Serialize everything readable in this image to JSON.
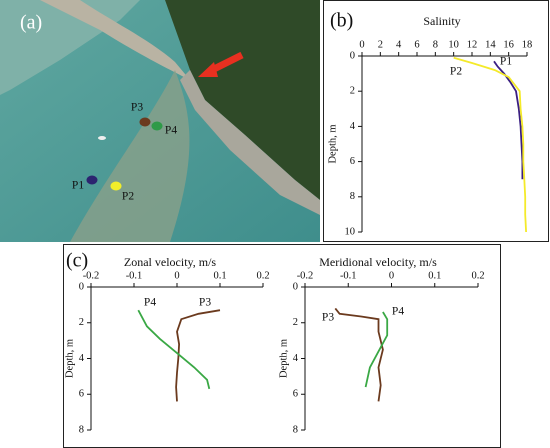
{
  "panels": [
    "(a)",
    "(b)",
    "(c)"
  ],
  "photo": {
    "points": [
      {
        "label": "P1",
        "color": "#2c2470"
      },
      {
        "label": "P2",
        "color": "#f2ee2a"
      },
      {
        "label": "P3",
        "color": "#6b3a1e"
      },
      {
        "label": "P4",
        "color": "#2e9a48"
      }
    ]
  },
  "chart_data": [
    {
      "type": "line",
      "title": "Salinity",
      "ylabel": "Depth, m",
      "xaxis_position": "top",
      "y_inverted": true,
      "xlim": [
        0,
        18
      ],
      "xticks": [
        0,
        2,
        4,
        6,
        8,
        10,
        12,
        14,
        16,
        18
      ],
      "ylim": [
        0,
        10
      ],
      "yticks": [
        0,
        2,
        4,
        6,
        8,
        10
      ],
      "series": [
        {
          "name": "P1",
          "color": "#3b1f82",
          "depth": [
            0.3,
            0.6,
            1,
            1.5,
            2,
            3,
            4,
            5,
            6,
            7
          ],
          "values": [
            14.4,
            14.8,
            15.5,
            16.2,
            16.8,
            17.1,
            17.3,
            17.4,
            17.5,
            17.5
          ]
        },
        {
          "name": "P2",
          "color": "#f4ea2a",
          "depth": [
            0.1,
            0.4,
            0.8,
            1.2,
            2,
            3,
            4,
            5,
            6,
            7,
            8,
            9,
            10
          ],
          "values": [
            10,
            12,
            14.5,
            16,
            17.2,
            17.3,
            17.5,
            17.6,
            17.6,
            17.7,
            17.8,
            17.8,
            17.9
          ]
        }
      ]
    },
    {
      "type": "line",
      "title": "Zonal velocity, m/s",
      "ylabel": "Depth, m",
      "xaxis_position": "top",
      "y_inverted": true,
      "xlim": [
        -0.2,
        0.2
      ],
      "xticks": [
        -0.2,
        -0.1,
        0,
        0.1,
        0.2
      ],
      "ylim": [
        0,
        8
      ],
      "yticks": [
        0,
        2,
        4,
        6,
        8
      ],
      "series": [
        {
          "name": "P3",
          "color": "#6b3a1e",
          "depth": [
            1.3,
            1.5,
            1.8,
            2.5,
            3.2,
            4,
            4.8,
            5.6,
            6.4
          ],
          "values": [
            0.1,
            0.05,
            0.01,
            0,
            0.005,
            0.003,
            0,
            -0.002,
            0
          ]
        },
        {
          "name": "P4",
          "color": "#3aa845",
          "depth": [
            1.3,
            2.2,
            2.9,
            3.7,
            4.5,
            5.2,
            5.7
          ],
          "values": [
            -0.09,
            -0.07,
            -0.04,
            0,
            0.04,
            0.07,
            0.075
          ]
        }
      ]
    },
    {
      "type": "line",
      "title": "Meridional velocity, m/s",
      "ylabel": "Depth, m",
      "xaxis_position": "top",
      "y_inverted": true,
      "xlim": [
        -0.2,
        0.2
      ],
      "xticks": [
        -0.2,
        -0.1,
        0,
        0.1,
        0.2
      ],
      "ylim": [
        0,
        8
      ],
      "yticks": [
        0,
        2,
        4,
        6,
        8
      ],
      "series": [
        {
          "name": "P3",
          "color": "#6b3a1e",
          "depth": [
            1.2,
            1.5,
            1.65,
            1.8,
            2.5,
            3.5,
            4.5,
            5.5,
            6.4
          ],
          "values": [
            -0.13,
            -0.12,
            -0.07,
            -0.03,
            -0.03,
            -0.02,
            -0.03,
            -0.025,
            -0.03
          ]
        },
        {
          "name": "P4",
          "color": "#3aa845",
          "depth": [
            1.4,
            1.8,
            2.7,
            3.6,
            4.5,
            5.6
          ],
          "values": [
            -0.02,
            -0.01,
            -0.01,
            -0.03,
            -0.05,
            -0.06
          ]
        }
      ]
    }
  ]
}
